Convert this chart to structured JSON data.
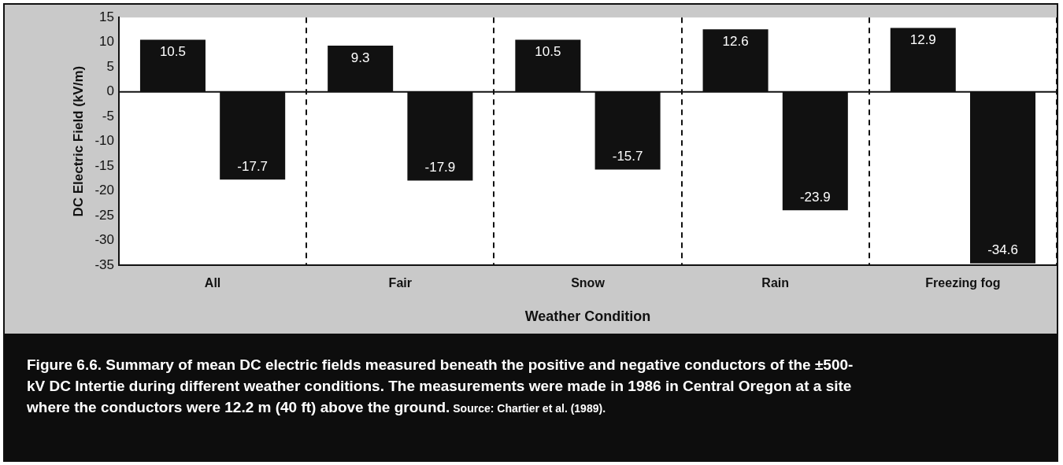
{
  "chart_data": {
    "type": "bar",
    "categories": [
      "All",
      "Fair",
      "Snow",
      "Rain",
      "Freezing fog"
    ],
    "series": [
      {
        "color": "#111111",
        "values": [
          10.5,
          9.3,
          10.5,
          12.6,
          12.9
        ]
      },
      {
        "color": "#111111",
        "values": [
          -17.7,
          -17.9,
          -15.7,
          -23.9,
          -34.6
        ]
      }
    ],
    "xlabel": "Weather Condition",
    "ylabel": "DC Electric Field (kV/m)",
    "ylim": [
      -35,
      15
    ],
    "yticks": [
      -35,
      -30,
      -25,
      -20,
      -15,
      -10,
      -5,
      0,
      5,
      10,
      15
    ],
    "grid": "x",
    "legend": false,
    "ref_lines": [
      {
        "axis": "y",
        "value": 0
      }
    ],
    "data_labels": true,
    "annotations": [
      "Figure 6.6. Summary of mean DC electric fields measured beneath the positive and negative conductors of the ±500-kV DC Intertie during different weather conditions. The measurements were made in 1986 in Central Oregon at a site where the conductors were 12.2 m (40 ft) above the ground.",
      "Source: Chartier et al. (1989)."
    ]
  }
}
